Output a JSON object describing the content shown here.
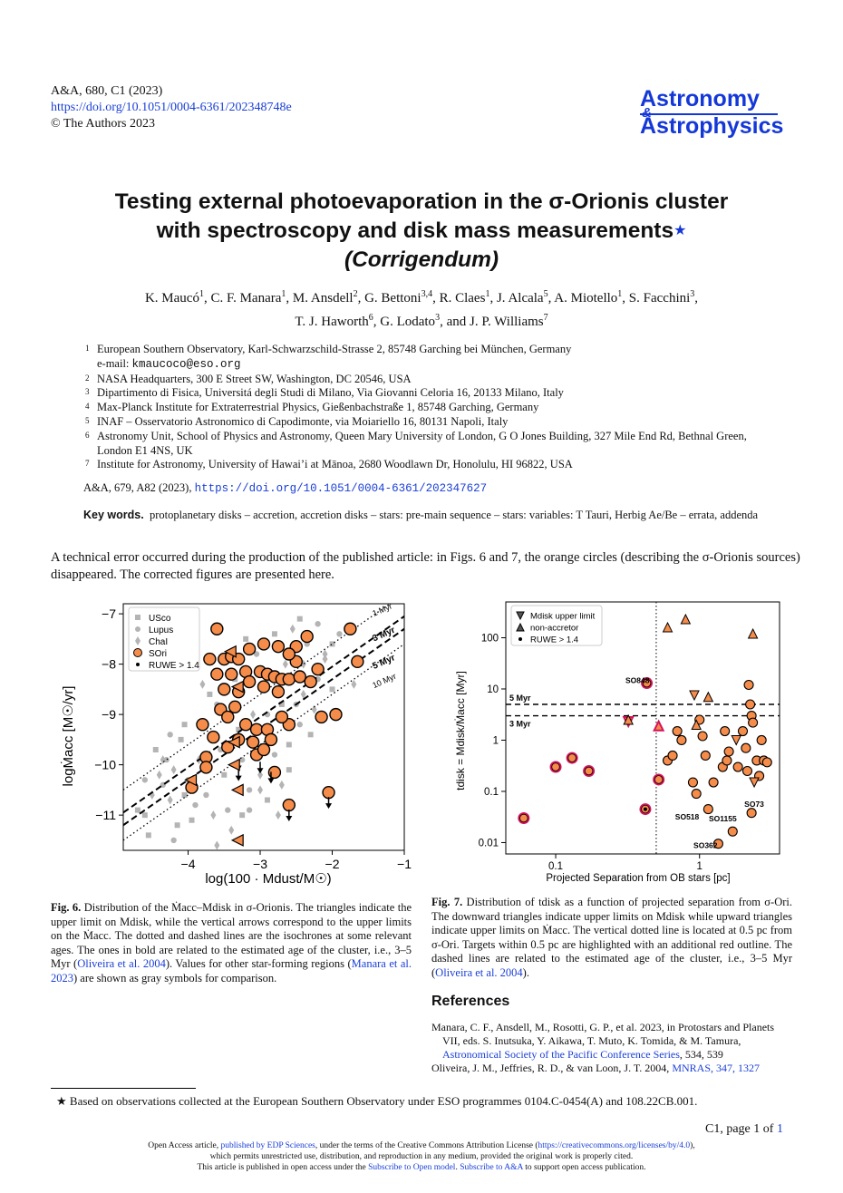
{
  "header": {
    "journal_ref": "A&A, 680, C1  (2023)",
    "doi": "https://doi.org/10.1051/0004-6361/202348748e",
    "copyright": "© The Authors 2023"
  },
  "logo": {
    "line1": "Astronomy",
    "amp": "&",
    "line2": "Astrophysics"
  },
  "title": {
    "line1": "Testing external photoevaporation in the σ-Orionis cluster",
    "line2": "with spectroscopy and disk mass measurements",
    "star": "★",
    "line3": "(Corrigendum)"
  },
  "authors": [
    {
      "name": "K. Maucó",
      "sup": "1",
      "sep": ", "
    },
    {
      "name": "C. F. Manara",
      "sup": "1",
      "sep": ", "
    },
    {
      "name": "M. Ansdell",
      "sup": "2",
      "sep": ", "
    },
    {
      "name": "G. Bettoni",
      "sup": "3,4",
      "sep": ", "
    },
    {
      "name": "R. Claes",
      "sup": "1",
      "sep": ", "
    },
    {
      "name": "J. Alcala",
      "sup": "5",
      "sep": ", "
    },
    {
      "name": "A. Miotello",
      "sup": "1",
      "sep": ", "
    },
    {
      "name": "S. Facchini",
      "sup": "3",
      "sep": ","
    },
    {
      "name": "T. J. Haworth",
      "sup": "6",
      "sep": ", "
    },
    {
      "name": "G. Lodato",
      "sup": "3",
      "sep": ", and "
    },
    {
      "name": "J. P. Williams",
      "sup": "7",
      "sep": ""
    }
  ],
  "affiliations": [
    {
      "num": "1",
      "text": "European Southern Observatory, Karl-Schwarzschild-Strasse 2, 85748 Garching bei München, Germany",
      "email_label": "e-mail: ",
      "email": "kmaucoco@eso.org"
    },
    {
      "num": "2",
      "text": "NASA Headquarters, 300 E Street SW, Washington, DC 20546, USA"
    },
    {
      "num": "3",
      "text": "Dipartimento di Fisica, Universitá degli Studi di Milano, Via Giovanni Celoria 16, 20133 Milano, Italy"
    },
    {
      "num": "4",
      "text": "Max-Planck Institute for Extraterrestrial Physics, Gießenbachstraße 1, 85748 Garching, Germany"
    },
    {
      "num": "5",
      "text": "INAF – Osservatorio Astronomico di Capodimonte, via Moiariello 16, 80131 Napoli, Italy"
    },
    {
      "num": "6",
      "text": "Astronomy Unit, School of Physics and Astronomy, Queen Mary University of London, G O Jones Building, 327 Mile End Rd, Bethnal Green, London E1 4NS, UK"
    },
    {
      "num": "7",
      "text": "Institute for Astronomy, University of Hawai’i at Mānoa, 2680 Woodlawn Dr, Honolulu, HI 96822, USA"
    }
  ],
  "original_ref": {
    "text": "A&A, 679, A82 (2023), ",
    "url": "https://doi.org/10.1051/0004-6361/202347627"
  },
  "keywords": {
    "label": "Key words.",
    "text": "protoplanetary disks – accretion, accretion disks – stars: pre-main sequence – stars: variables: T Tauri, Herbig Ae/Be – errata, addenda"
  },
  "intro": "A technical error occurred during the production of the published article: in Figs. 6 and 7, the orange circles (describing the σ-Orionis sources) disappeared. The corrected figures are presented here.",
  "fig6": {
    "label": "Fig. 6.",
    "caption": "Distribution of the Ṁacc–Mdisk in σ-Orionis. The triangles indicate the upper limit on Mdisk, while the vertical arrows correspond to the upper limits on the Ṁacc. The dotted and dashed lines are the isochrones at some relevant ages. The ones in bold are related to the estimated age of the cluster, i.e., 3–5 Myr (",
    "cite1": "Oliveira et al. 2004",
    "mid": "). Values for other star-forming regions (",
    "cite2": "Manara et al. 2023",
    "end": ") are shown as gray symbols for comparison."
  },
  "fig7": {
    "label": "Fig. 7.",
    "caption": "Distribution of tdisk as a function of projected separation from σ-Ori. The downward triangles indicate upper limits on Mdisk while upward triangles indicate upper limits on Ṁacc. The vertical dotted line is located at 0.5 pc from σ-Ori. Targets within 0.5 pc are highlighted with an additional red outline. The dashed lines are related to the estimated age of the cluster, i.e., 3–5 Myr (",
    "cite": "Oliveira et al. 2004",
    "end": ")."
  },
  "references": {
    "heading": "References",
    "items": [
      {
        "text": "Manara, C. F., Ansdell, M., Rosotti, G. P., et al. 2023, in Protostars and Planets VII, eds. S. Inutsuka, Y. Aikawa, T. Muto, K. Tomida, & M. Tamura, ",
        "link": "Astronomical Society of the Pacific Conference Series",
        "tail": ", 534, 539"
      },
      {
        "text": "Oliveira, J. M., Jeffries, R. D., & van Loon, J. T. 2004, ",
        "link": "MNRAS, 347, 1327",
        "tail": ""
      }
    ]
  },
  "footnote": {
    "star": "★",
    "text": "Based on observations collected at the European Southern Observatory under ESO programmes 0104.C-0454(A) and 108.22CB.001."
  },
  "page": {
    "text": "C1, page 1 of ",
    "link": "1"
  },
  "open_access": {
    "l1a": "Open Access article, ",
    "l1link": "published by EDP Sciences",
    "l1b": ", under the terms of the Creative Commons Attribution License (",
    "l1url": "https://creativecommons.org/licenses/by/4.0",
    "l1c": "),",
    "l2": "which permits unrestricted use, distribution, and reproduction in any medium, provided the original work is properly cited.",
    "l3a": "This article is published in open access under the ",
    "l3link1": "Subscribe to Open model",
    "l3b": ". ",
    "l3link2": "Subscribe to A&A",
    "l3c": " to support open access publication."
  },
  "chart_data": [
    {
      "type": "scatter",
      "id": "fig6",
      "xlabel": "log(100 · Mdust/M☉)",
      "ylabel": "logṀacc [M☉/yr]",
      "xlim": [
        -4.9,
        -1
      ],
      "ylim": [
        -11.7,
        -6.8
      ],
      "xticks": [
        -4,
        -3,
        -2,
        -1
      ],
      "yticks": [
        -7,
        -8,
        -9,
        -10,
        -11
      ],
      "legend": {
        "position": "top-left",
        "entries": [
          "USco",
          "Lupus",
          "ChaI",
          "SOri",
          "RUWE > 1.4"
        ]
      },
      "colors": {
        "sori": "#f58c4a",
        "gray": "#b4b4b4"
      },
      "isochrones": [
        {
          "label": "1 Myr",
          "style": "dotted",
          "offset": -5.6
        },
        {
          "label": "3 Myr",
          "style": "bold-dashed",
          "offset": -6.05
        },
        {
          "label": "5 Myr",
          "style": "bold-dashed",
          "offset": -6.3
        },
        {
          "label": "10 Myr",
          "style": "dotted",
          "offset": -6.6
        }
      ],
      "sori_circles": [
        [
          -3.6,
          -7.3
        ],
        [
          -3.7,
          -7.9
        ],
        [
          -3.5,
          -7.9
        ],
        [
          -3.4,
          -7.85
        ],
        [
          -3.3,
          -7.9
        ],
        [
          -3.15,
          -7.7
        ],
        [
          -2.95,
          -7.6
        ],
        [
          -2.75,
          -7.65
        ],
        [
          -2.5,
          -7.65
        ],
        [
          -2.35,
          -7.45
        ],
        [
          -2.5,
          -7.95
        ],
        [
          -2.6,
          -7.8
        ],
        [
          -1.75,
          -7.3
        ],
        [
          -1.65,
          -7.95
        ],
        [
          -3.6,
          -8.2
        ],
        [
          -3.4,
          -8.2
        ],
        [
          -3.2,
          -8.15
        ],
        [
          -3.0,
          -8.15
        ],
        [
          -2.9,
          -8.2
        ],
        [
          -2.8,
          -8.25
        ],
        [
          -2.7,
          -8.3
        ],
        [
          -2.6,
          -8.3
        ],
        [
          -2.45,
          -8.25
        ],
        [
          -2.3,
          -8.35
        ],
        [
          -2.2,
          -8.1
        ],
        [
          -3.5,
          -8.5
        ],
        [
          -3.3,
          -8.55
        ],
        [
          -3.15,
          -8.35
        ],
        [
          -2.95,
          -8.45
        ],
        [
          -2.75,
          -8.55
        ],
        [
          -3.55,
          -8.9
        ],
        [
          -3.35,
          -8.85
        ],
        [
          -3.8,
          -9.2
        ],
        [
          -3.2,
          -9.2
        ],
        [
          -3.05,
          -9.3
        ],
        [
          -2.9,
          -9.3
        ],
        [
          -2.6,
          -9.2
        ],
        [
          -2.15,
          -9.05
        ],
        [
          -1.95,
          -9.0
        ],
        [
          -3.3,
          -9.5
        ],
        [
          -3.1,
          -9.55
        ],
        [
          -2.85,
          -9.5
        ],
        [
          -3.75,
          -9.85
        ],
        [
          -3.45,
          -9.65
        ],
        [
          -3.05,
          -9.8
        ],
        [
          -2.95,
          -9.7
        ],
        [
          -3.75,
          -10.05
        ],
        [
          -2.8,
          -10.15
        ],
        [
          -2.05,
          -10.55
        ],
        [
          -2.6,
          -10.8
        ],
        [
          -3.95,
          -10.45
        ],
        [
          -3.65,
          -9.45
        ],
        [
          -3.45,
          -9.05
        ],
        [
          -2.7,
          -9.05
        ]
      ],
      "arrows": [
        [
          -3.3,
          -10.0
        ],
        [
          -3.0,
          -9.85
        ],
        [
          -2.85,
          -10.05
        ],
        [
          -2.6,
          -10.8
        ],
        [
          -2.05,
          -10.55
        ],
        [
          -3.3,
          -9.8
        ]
      ],
      "left_triangles": [
        [
          -3.4,
          -7.75
        ],
        [
          -3.3,
          -8.45
        ],
        [
          -3.35,
          -9.55
        ],
        [
          -3.35,
          -10.0
        ],
        [
          -3.95,
          -10.3
        ],
        [
          -3.3,
          -10.5
        ],
        [
          -3.3,
          -11.5
        ]
      ],
      "gray_points": [
        [
          -4.45,
          -9.7
        ],
        [
          -4.3,
          -9.9
        ],
        [
          -4.2,
          -10.1
        ],
        [
          -4.1,
          -9.5
        ],
        [
          -4.0,
          -10.3
        ],
        [
          -4.5,
          -10.6
        ],
        [
          -4.6,
          -11.0
        ],
        [
          -4.35,
          -10.4
        ],
        [
          -4.25,
          -10.7
        ],
        [
          -4.15,
          -11.2
        ],
        [
          -3.9,
          -10.8
        ],
        [
          -3.85,
          -9.2
        ],
        [
          -3.7,
          -8.6
        ],
        [
          -3.75,
          -10.6
        ],
        [
          -3.65,
          -11.0
        ],
        [
          -3.5,
          -10.2
        ],
        [
          -3.45,
          -10.9
        ],
        [
          -3.4,
          -11.3
        ],
        [
          -3.25,
          -11.0
        ],
        [
          -3.15,
          -10.5
        ],
        [
          -3.0,
          -10.2
        ],
        [
          -2.9,
          -10.7
        ],
        [
          -2.8,
          -9.8
        ],
        [
          -2.7,
          -10.4
        ],
        [
          -2.6,
          -9.6
        ],
        [
          -2.5,
          -8.8
        ],
        [
          -2.4,
          -8.6
        ],
        [
          -2.3,
          -9.4
        ],
        [
          -2.2,
          -8.3
        ],
        [
          -2.1,
          -7.9
        ],
        [
          -2.0,
          -7.6
        ],
        [
          -2.35,
          -7.6
        ],
        [
          -2.55,
          -7.3
        ],
        [
          -2.8,
          -7.4
        ],
        [
          -3.05,
          -7.8
        ],
        [
          -2.65,
          -8.0
        ],
        [
          -2.45,
          -7.1
        ],
        [
          -2.2,
          -7.2
        ],
        [
          -2.1,
          -7.8
        ],
        [
          -2.7,
          -8.8
        ],
        [
          -2.9,
          -9.0
        ],
        [
          -3.1,
          -9.0
        ],
        [
          -3.3,
          -9.3
        ],
        [
          -3.55,
          -9.7
        ],
        [
          -3.85,
          -9.9
        ],
        [
          -4.05,
          -9.2
        ],
        [
          -4.25,
          -9.4
        ],
        [
          -4.4,
          -10.2
        ],
        [
          -4.55,
          -11.4
        ],
        [
          -4.2,
          -11.5
        ],
        [
          -3.6,
          -11.6
        ],
        [
          -3.95,
          -11.1
        ],
        [
          -3.25,
          -9.9
        ],
        [
          -3.0,
          -10.5
        ],
        [
          -2.6,
          -10.1
        ],
        [
          -2.45,
          -9.2
        ],
        [
          -2.25,
          -8.9
        ],
        [
          -3.35,
          -8.3
        ],
        [
          -3.6,
          -8.8
        ],
        [
          -3.8,
          -8.4
        ],
        [
          -3.2,
          -7.5
        ],
        [
          -2.9,
          -8.3
        ],
        [
          -2.4,
          -8.0
        ],
        [
          -2.0,
          -8.5
        ],
        [
          -1.9,
          -7.4
        ],
        [
          -1.7,
          -8.4
        ],
        [
          -4.7,
          -10.9
        ],
        [
          -4.6,
          -10.3
        ],
        [
          -4.35,
          -9.9
        ],
        [
          -4.05,
          -10.6
        ],
        [
          -3.15,
          -10.9
        ],
        [
          -2.75,
          -11.0
        ]
      ]
    },
    {
      "type": "scatter",
      "id": "fig7",
      "xscale": "log",
      "yscale": "log",
      "xlabel": "Projected Separation from OB stars [pc]",
      "ylabel": "tdisk = Mdisk/Ṁacc [Myr]",
      "xlim": [
        0.045,
        3.6
      ],
      "ylim": [
        0.006,
        500
      ],
      "xticks": [
        {
          "v": 0.1,
          "l": "0.1"
        },
        {
          "v": 1,
          "l": "1"
        }
      ],
      "yticks": [
        {
          "v": 0.01,
          "l": "0.01"
        },
        {
          "v": 0.1,
          "l": "0.1"
        },
        {
          "v": 1,
          "l": "1"
        },
        {
          "v": 10,
          "l": "10"
        },
        {
          "v": 100,
          "l": "100"
        }
      ],
      "hlines": [
        {
          "v": 5,
          "l": "5 Myr"
        },
        {
          "v": 3,
          "l": "3 Myr"
        }
      ],
      "vline": 0.5,
      "legend": {
        "position": "top-left",
        "entries": [
          "Mdisk upper limit",
          "non-accretor",
          "RUWE > 1.4"
        ]
      },
      "colors": {
        "sori": "#f58c4a",
        "highlight": "#d4145a"
      },
      "labels": [
        {
          "t": "SO848",
          "x": 0.37,
          "y": 13
        },
        {
          "t": "SO518",
          "x": 0.82,
          "y": 0.028
        },
        {
          "t": "SO1155",
          "x": 1.45,
          "y": 0.026
        },
        {
          "t": "SO73",
          "x": 2.4,
          "y": 0.05
        },
        {
          "t": "SO362",
          "x": 1.1,
          "y": 0.0078
        }
      ],
      "inner_circles": [
        [
          0.06,
          0.03
        ],
        [
          0.1,
          0.3
        ],
        [
          0.13,
          0.45
        ],
        [
          0.17,
          0.25
        ],
        [
          0.43,
          13
        ],
        [
          0.42,
          0.045
        ],
        [
          0.52,
          0.17
        ]
      ],
      "outer_circles": [
        [
          0.6,
          0.4
        ],
        [
          0.65,
          0.5
        ],
        [
          0.7,
          1.5
        ],
        [
          0.75,
          1.0
        ],
        [
          0.9,
          0.15
        ],
        [
          0.95,
          0.09
        ],
        [
          1.0,
          2.5
        ],
        [
          1.05,
          1.2
        ],
        [
          1.1,
          0.5
        ],
        [
          1.15,
          0.045
        ],
        [
          1.25,
          0.15
        ],
        [
          1.35,
          0.0095
        ],
        [
          1.45,
          0.3
        ],
        [
          1.5,
          1.5
        ],
        [
          1.55,
          0.4
        ],
        [
          1.6,
          0.6
        ],
        [
          1.7,
          0.0165
        ],
        [
          1.85,
          0.3
        ],
        [
          2.0,
          1.5
        ],
        [
          2.1,
          0.7
        ],
        [
          2.15,
          0.25
        ],
        [
          2.2,
          12
        ],
        [
          2.25,
          5
        ],
        [
          2.3,
          3
        ],
        [
          2.35,
          2.2
        ],
        [
          2.5,
          0.4
        ],
        [
          2.6,
          0.2
        ],
        [
          2.7,
          1.0
        ],
        [
          2.8,
          0.4
        ],
        [
          2.3,
          0.038
        ],
        [
          2.95,
          0.37
        ]
      ],
      "down_tri": [
        [
          0.32,
          2.3
        ],
        [
          0.92,
          7.5
        ],
        [
          1.8,
          1.0
        ],
        [
          2.4,
          0.15
        ]
      ],
      "up_tri": [
        [
          0.32,
          2.5
        ],
        [
          0.52,
          1.9
        ],
        [
          0.6,
          160
        ],
        [
          0.8,
          230
        ],
        [
          0.95,
          2.0
        ],
        [
          1.15,
          7.0
        ],
        [
          2.35,
          120
        ]
      ],
      "inner_down_tri": [
        [
          0.32,
          2.3
        ]
      ],
      "inner_up_tri": [
        [
          0.52,
          1.9
        ]
      ],
      "dots": [
        [
          0.42,
          0.045
        ]
      ]
    }
  ]
}
